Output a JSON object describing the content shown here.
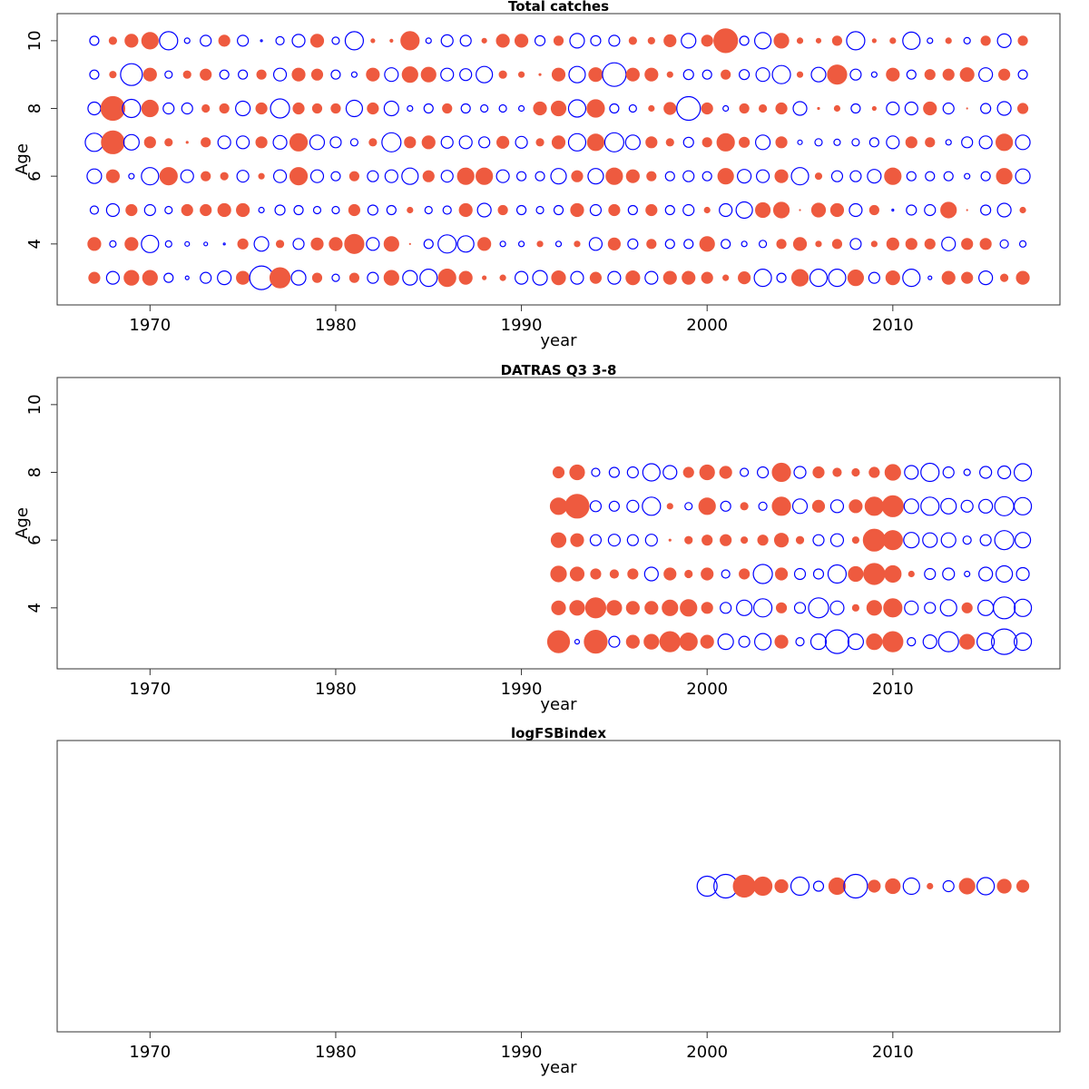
{
  "chart_data": [
    {
      "type": "bubble",
      "title": "Total catches",
      "xlabel": "year",
      "ylabel": "Age",
      "x": [
        1967,
        1968,
        1969,
        1970,
        1971,
        1972,
        1973,
        1974,
        1975,
        1976,
        1977,
        1978,
        1979,
        1980,
        1981,
        1982,
        1983,
        1984,
        1985,
        1986,
        1987,
        1988,
        1989,
        1990,
        1991,
        1992,
        1993,
        1994,
        1995,
        1996,
        1997,
        1998,
        1999,
        2000,
        2001,
        2002,
        2003,
        2004,
        2005,
        2006,
        2007,
        2008,
        2009,
        2010,
        2011,
        2012,
        2013,
        2014,
        2015,
        2016,
        2017
      ],
      "series": [
        {
          "y": 3,
          "values": [
            0.6,
            -0.7,
            0.8,
            0.8,
            -0.5,
            -0.2,
            -0.6,
            -0.75,
            0.7,
            -1.3,
            1.1,
            -0.8,
            0.5,
            -0.4,
            0.5,
            -0.6,
            0.8,
            -0.8,
            -0.95,
            0.95,
            0.7,
            0.2,
            0.3,
            -0.7,
            -0.8,
            0.75,
            -0.7,
            0.6,
            -0.7,
            0.75,
            -0.7,
            0.7,
            0.7,
            0.6,
            0.3,
            0.65,
            -0.95,
            -0.5,
            0.9,
            -0.95,
            -0.95,
            0.85,
            -0.6,
            0.75,
            -0.95,
            -0.2,
            0.7,
            0.6,
            -0.75,
            0.4,
            0.7
          ]
        },
        {
          "y": 4,
          "values": [
            0.7,
            -0.35,
            0.7,
            -0.95,
            -0.35,
            -0.25,
            -0.2,
            -0.1,
            0.55,
            -0.8,
            0.4,
            -0.6,
            0.65,
            0.7,
            1.05,
            -0.7,
            0.8,
            0.05,
            -0.5,
            -1.0,
            -0.9,
            0.7,
            -0.3,
            -0.3,
            0.3,
            -0.3,
            0.3,
            -0.7,
            0.65,
            -0.55,
            0.5,
            -0.5,
            -0.5,
            0.8,
            -0.5,
            -0.3,
            -0.4,
            0.5,
            0.7,
            0.3,
            0.5,
            -0.6,
            0.3,
            0.65,
            0.6,
            0.55,
            -0.75,
            0.6,
            0.6,
            -0.45,
            -0.35
          ]
        },
        {
          "y": 5,
          "values": [
            -0.45,
            -0.7,
            0.6,
            -0.6,
            -0.4,
            0.6,
            0.6,
            0.7,
            0.7,
            -0.3,
            -0.55,
            -0.5,
            -0.4,
            -0.4,
            0.6,
            -0.55,
            -0.5,
            0.3,
            -0.4,
            -0.45,
            0.7,
            -0.75,
            0.5,
            -0.5,
            -0.4,
            -0.5,
            0.7,
            -0.6,
            0.6,
            -0.5,
            0.6,
            -0.5,
            -0.6,
            0.3,
            -0.7,
            -0.9,
            0.8,
            0.85,
            0.05,
            0.75,
            0.7,
            -0.7,
            0.5,
            -0.1,
            -0.55,
            -0.6,
            0.85,
            0.05,
            -0.55,
            -0.75,
            0.3
          ]
        },
        {
          "y": 6,
          "values": [
            -0.8,
            0.7,
            -0.3,
            -0.95,
            0.95,
            -0.7,
            0.5,
            0.4,
            -0.65,
            0.3,
            -0.7,
            0.95,
            -0.7,
            -0.5,
            0.5,
            -0.6,
            -0.7,
            -0.9,
            0.6,
            -0.65,
            0.9,
            0.9,
            -0.7,
            -0.5,
            -0.5,
            -0.85,
            0.6,
            -0.85,
            0.9,
            0.7,
            0.5,
            -0.5,
            -0.6,
            -0.5,
            0.85,
            -0.75,
            -0.7,
            0.7,
            -0.95,
            0.35,
            -0.6,
            -0.6,
            -0.75,
            0.9,
            -0.5,
            -0.5,
            -0.5,
            -0.3,
            -0.5,
            0.85,
            -0.8
          ]
        },
        {
          "y": 7,
          "values": [
            -1.0,
            1.25,
            -0.85,
            0.6,
            0.4,
            0.1,
            0.5,
            -0.7,
            -0.7,
            0.6,
            -0.75,
            0.95,
            -0.8,
            -0.6,
            -0.4,
            0.4,
            -1.05,
            0.6,
            0.7,
            -0.65,
            -0.7,
            -0.6,
            0.65,
            -0.65,
            0.4,
            0.7,
            -0.95,
            0.9,
            -1.05,
            -0.8,
            0.6,
            0.4,
            -0.55,
            0.5,
            0.95,
            0.55,
            -0.8,
            0.6,
            -0.25,
            -0.4,
            -0.35,
            -0.4,
            -0.5,
            -0.7,
            0.6,
            0.5,
            -0.3,
            -0.6,
            -0.7,
            0.9,
            -0.8
          ]
        },
        {
          "y": 8,
          "values": [
            -0.7,
            1.3,
            -1.0,
            0.9,
            -0.6,
            -0.6,
            0.4,
            0.5,
            -0.8,
            0.6,
            -1.05,
            0.6,
            0.5,
            0.5,
            -0.9,
            0.6,
            -0.8,
            -0.3,
            -0.5,
            0.5,
            -0.5,
            -0.4,
            -0.4,
            -0.3,
            0.7,
            0.8,
            -0.95,
            0.95,
            -0.5,
            -0.4,
            0.3,
            0.65,
            -1.3,
            0.6,
            -0.3,
            0.5,
            0.4,
            0.6,
            -0.75,
            0.1,
            0.3,
            -0.5,
            0.2,
            -0.7,
            -0.7,
            0.7,
            -0.6,
            0.05,
            -0.55,
            -0.75,
            0.55
          ]
        },
        {
          "y": 9,
          "values": [
            -0.5,
            0.35,
            -1.2,
            0.7,
            -0.4,
            0.4,
            0.6,
            -0.5,
            -0.5,
            0.5,
            -0.7,
            0.7,
            0.6,
            -0.5,
            -0.3,
            0.7,
            -0.75,
            0.85,
            0.8,
            -0.7,
            -0.65,
            -0.9,
            0.4,
            0.3,
            0.1,
            0.7,
            -0.9,
            0.75,
            -1.3,
            0.7,
            0.7,
            0.3,
            -0.55,
            -0.5,
            0.5,
            -0.55,
            -0.75,
            -1.0,
            0.3,
            -0.8,
            1.05,
            -0.6,
            -0.3,
            0.7,
            -0.5,
            0.55,
            0.6,
            0.75,
            -0.75,
            0.6,
            -0.5
          ]
        },
        {
          "y": 10,
          "values": [
            -0.5,
            0.4,
            0.7,
            0.9,
            -1.0,
            -0.3,
            -0.6,
            0.6,
            -0.6,
            -0.1,
            -0.45,
            -0.7,
            0.7,
            -0.4,
            -1.0,
            0.2,
            0.15,
            1.0,
            -0.3,
            -0.65,
            -0.6,
            0.25,
            0.7,
            0.7,
            -0.55,
            0.5,
            -0.8,
            -0.55,
            -0.6,
            0.4,
            0.35,
            0.65,
            -0.8,
            0.6,
            1.3,
            -0.5,
            -0.9,
            0.8,
            0.3,
            0.25,
            0.5,
            -1.0,
            0.2,
            0.3,
            -0.95,
            -0.3,
            0.3,
            -0.35,
            0.5,
            -0.75,
            0.5
          ]
        }
      ],
      "xlim": [
        1965,
        2019
      ],
      "ylim": [
        2.2,
        10.8
      ],
      "xticks": [
        1970,
        1980,
        1990,
        2000,
        2010
      ],
      "yticks": [
        4,
        6,
        8,
        10
      ],
      "positive_color": "#ee5a3f",
      "negative_color": "#0000ff"
    },
    {
      "type": "bubble",
      "title": "DATRAS Q3 3-8",
      "xlabel": "year",
      "ylabel": "Age",
      "x": [
        1992,
        1993,
        1994,
        1995,
        1996,
        1997,
        1998,
        1999,
        2000,
        2001,
        2002,
        2003,
        2004,
        2005,
        2006,
        2007,
        2008,
        2009,
        2010,
        2011,
        2012,
        2013,
        2014,
        2015,
        2016,
        2017
      ],
      "series": [
        {
          "y": 3,
          "values": [
            1.2,
            -0.25,
            1.25,
            -0.6,
            0.7,
            0.8,
            1.1,
            0.95,
            0.7,
            -0.85,
            -0.6,
            -0.9,
            0.7,
            -0.45,
            -0.85,
            -1.3,
            -0.85,
            0.85,
            1.1,
            -0.45,
            -0.75,
            -1.1,
            0.8,
            -0.95,
            -1.4,
            -0.95
          ]
        },
        {
          "y": 4,
          "values": [
            0.75,
            0.8,
            1.1,
            0.8,
            0.7,
            0.7,
            0.85,
            0.9,
            0.6,
            -0.6,
            -0.85,
            -1.0,
            0.55,
            -0.6,
            -1.1,
            -0.75,
            0.35,
            0.8,
            1.0,
            -0.75,
            -0.6,
            -0.9,
            0.55,
            -0.85,
            -1.2,
            -0.95
          ]
        },
        {
          "y": 5,
          "values": [
            0.85,
            0.75,
            0.55,
            0.45,
            0.55,
            -0.75,
            0.65,
            0.4,
            0.65,
            -0.45,
            0.55,
            -1.05,
            0.65,
            -0.6,
            -0.55,
            -1.0,
            0.8,
            1.15,
            0.9,
            0.3,
            -0.6,
            -0.65,
            -0.3,
            -0.75,
            -0.9,
            -0.7
          ]
        },
        {
          "y": 6,
          "values": [
            0.8,
            0.7,
            -0.6,
            -0.65,
            -0.6,
            -0.65,
            0.1,
            0.4,
            0.55,
            0.6,
            0.35,
            0.55,
            0.75,
            0.4,
            -0.6,
            -0.7,
            0.35,
            1.2,
            1.05,
            -0.85,
            -0.8,
            -0.8,
            -0.45,
            -0.6,
            -1.05,
            -0.85
          ]
        },
        {
          "y": 7,
          "values": [
            0.9,
            1.3,
            -0.6,
            -0.55,
            -0.65,
            -1.0,
            0.3,
            -0.4,
            0.9,
            -0.55,
            0.4,
            -0.45,
            1.0,
            -0.8,
            0.65,
            -0.7,
            0.7,
            1.0,
            1.15,
            -0.8,
            -1.0,
            -0.85,
            -0.65,
            -0.75,
            -1.05,
            -0.95
          ]
        },
        {
          "y": 8,
          "values": [
            0.6,
            0.8,
            -0.45,
            -0.55,
            -0.6,
            -0.95,
            -0.75,
            0.55,
            0.8,
            0.65,
            -0.45,
            -0.6,
            1.0,
            -0.65,
            0.6,
            0.45,
            0.4,
            0.55,
            0.85,
            -0.75,
            -1.0,
            -0.6,
            -0.35,
            -0.65,
            -0.7,
            -0.95
          ]
        }
      ],
      "xlim": [
        1965,
        2019
      ],
      "ylim": [
        2.2,
        10.8
      ],
      "xticks": [
        1970,
        1980,
        1990,
        2000,
        2010
      ],
      "yticks": [
        4,
        6,
        8,
        10
      ],
      "positive_color": "#ee5a3f",
      "negative_color": "#0000ff"
    },
    {
      "type": "bubble",
      "title": "logFSBindex",
      "xlabel": "year",
      "x": [
        2000,
        2001,
        2002,
        2003,
        2004,
        2005,
        2006,
        2007,
        2008,
        2009,
        2010,
        2011,
        2012,
        2013,
        2014,
        2015,
        2016,
        2017
      ],
      "values": [
        -1.1,
        -1.3,
        1.2,
        1.0,
        0.7,
        -1.0,
        -0.55,
        0.9,
        -1.3,
        0.65,
        0.8,
        -0.9,
        0.3,
        -0.6,
        0.85,
        -0.95,
        0.75,
        0.65
      ],
      "xlim": [
        1965,
        2019
      ],
      "xticks": [
        1970,
        1980,
        1990,
        2000,
        2010
      ],
      "positive_color": "#ee5a3f",
      "negative_color": "#0000ff"
    }
  ]
}
